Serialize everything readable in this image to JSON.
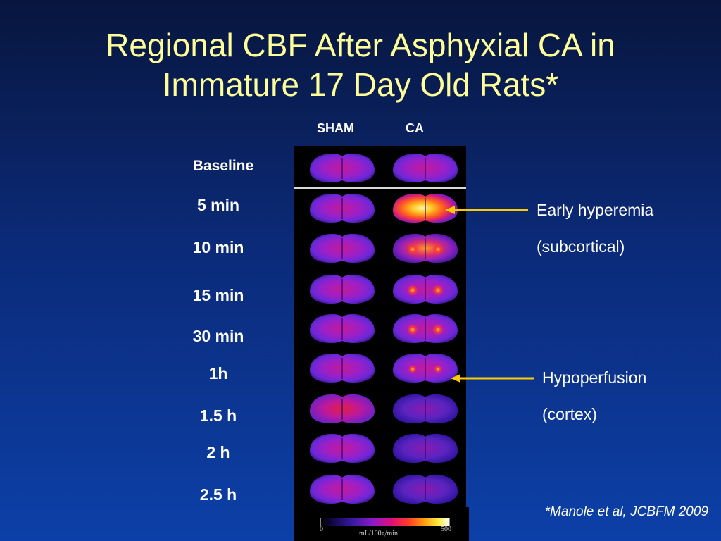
{
  "slide": {
    "title_line1": "Regional CBF After Asphyxial CA in",
    "title_line2": "Immature 17 Day Old Rats*",
    "columns": [
      "SHAM",
      "CA"
    ],
    "rows": [
      "Baseline",
      "5 min",
      "10 min",
      "15 min",
      "30 min",
      "1h",
      "1.5 h",
      "2 h",
      "2.5 h"
    ],
    "annotations": {
      "hyperemia_line1": "Early hyperemia",
      "hyperemia_line2": "(subcortical)",
      "hypoperfusion_line1": "Hypoperfusion",
      "hypoperfusion_line2": "(cortex)"
    },
    "colorbar": {
      "min": "0",
      "max": "500",
      "unit": "mL/100g/min"
    },
    "citation": "*Manole et al, JCBFM 2009"
  },
  "colors": {
    "title": "#ffff99",
    "arrow": "#ffcc00",
    "background_top": "#08163e",
    "background_bottom": "#0c40a8"
  }
}
